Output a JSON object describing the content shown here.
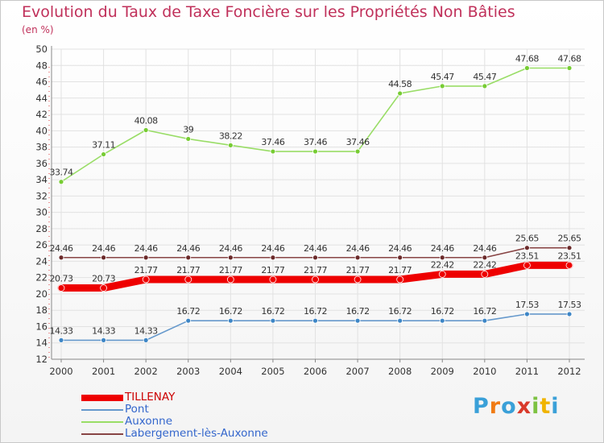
{
  "title": "Evolution du Taux de Taxe Foncière sur les Propriétés Non Bâties",
  "unit_label": "(en %)",
  "logo": {
    "letters": [
      {
        "char": "P",
        "color": "#3aa0d8"
      },
      {
        "char": "r",
        "color": "#f07b14"
      },
      {
        "char": "o",
        "color": "#3aa0d8"
      },
      {
        "char": "x",
        "color": "#d93a2b"
      },
      {
        "char": "i",
        "color": "#7dc242"
      },
      {
        "char": "t",
        "color": "#f0b400"
      },
      {
        "char": "i",
        "color": "#3aa0d8"
      }
    ]
  },
  "chart_data": {
    "type": "line",
    "title": "Evolution du Taux de Taxe Foncière sur les Propriétés Non Bâties",
    "ylabel": "(en %)",
    "xlabel": "",
    "x": [
      "2000",
      "2001",
      "2002",
      "2003",
      "2004",
      "2005",
      "2006",
      "2007",
      "2008",
      "2009",
      "2010",
      "2011",
      "2012"
    ],
    "ylim": [
      12,
      50
    ],
    "yticks": [
      12,
      14,
      16,
      18,
      20,
      22,
      24,
      26,
      28,
      30,
      32,
      34,
      36,
      38,
      40,
      42,
      44,
      46,
      48,
      50
    ],
    "grid": true,
    "legend_position": "bottom-left",
    "series": [
      {
        "name": "TILLENAY",
        "color": "#ee0000",
        "marker_color": "#ee0000",
        "thick": true,
        "values": [
          20.73,
          20.73,
          21.77,
          21.77,
          21.77,
          21.77,
          21.77,
          21.77,
          21.77,
          22.42,
          22.42,
          23.51,
          23.51
        ],
        "labels": [
          "20.73",
          "20.73",
          "21.77",
          "21.77",
          "21.77",
          "21.77",
          "21.77",
          "21.77",
          "21.77",
          "22.42",
          "22.42",
          "23.51",
          "23.51"
        ]
      },
      {
        "name": "Pont",
        "color": "#6699cc",
        "marker_color": "#3d86c6",
        "thick": false,
        "values": [
          14.33,
          14.33,
          14.33,
          16.72,
          16.72,
          16.72,
          16.72,
          16.72,
          16.72,
          16.72,
          16.72,
          17.53,
          17.53
        ],
        "labels": [
          "14.33",
          "14.33",
          "14.33",
          "16.72",
          "16.72",
          "16.72",
          "16.72",
          "16.72",
          "16.72",
          "16.72",
          "16.72",
          "17.53",
          "17.53"
        ]
      },
      {
        "name": "Auxonne",
        "color": "#99dd66",
        "marker_color": "#77cc33",
        "thick": false,
        "values": [
          33.74,
          37.11,
          40.08,
          39,
          38.22,
          37.46,
          37.46,
          37.46,
          44.58,
          45.47,
          45.47,
          47.68,
          47.68
        ],
        "labels": [
          "33.74",
          "37.11",
          "40.08",
          "39",
          "38.22",
          "37.46",
          "37.46",
          "37.46",
          "44.58",
          "45.47",
          "45.47",
          "47.68",
          "47.68"
        ]
      },
      {
        "name": "Labergement-lès-Auxonne",
        "color": "#884444",
        "marker_color": "#6b2a2a",
        "thick": false,
        "values": [
          24.46,
          24.46,
          24.46,
          24.46,
          24.46,
          24.46,
          24.46,
          24.46,
          24.46,
          24.46,
          24.46,
          25.65,
          25.65
        ],
        "labels": [
          "24.46",
          "24.46",
          "24.46",
          "24.46",
          "24.46",
          "24.46",
          "24.46",
          "24.46",
          "24.46",
          "24.46",
          "24.46",
          "25.65",
          "25.65"
        ]
      }
    ]
  }
}
